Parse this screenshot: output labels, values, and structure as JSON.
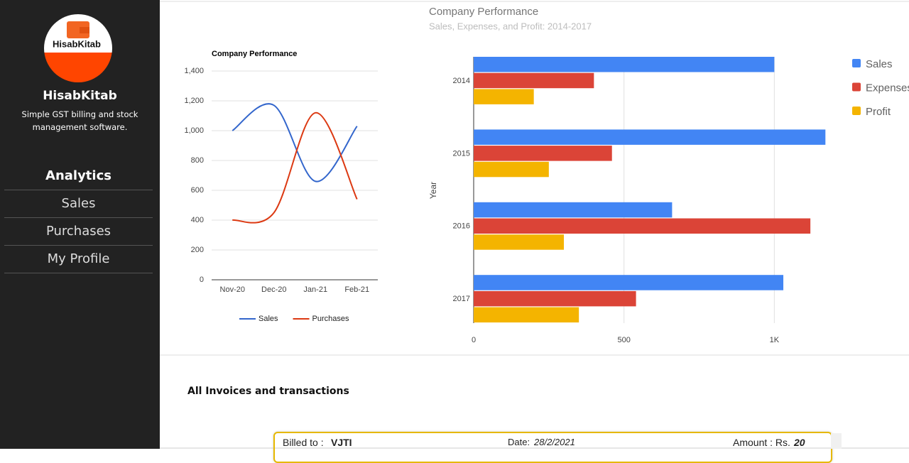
{
  "sidebar": {
    "logo_text": "HisabKitab",
    "brand": "HisabKitab",
    "tagline": "Simple GST billing and stock management software.",
    "nav": [
      "Analytics",
      "Sales",
      "Purchases",
      "My Profile"
    ]
  },
  "chart_data": [
    {
      "type": "line",
      "title": "Company Performance",
      "categories": [
        "Nov-20",
        "Dec-20",
        "Jan-21",
        "Feb-21"
      ],
      "series": [
        {
          "name": "Sales",
          "color": "#3366cc",
          "values": [
            1000,
            1170,
            660,
            1030
          ]
        },
        {
          "name": "Purchases",
          "color": "#dc3912",
          "values": [
            400,
            450,
            1120,
            540
          ]
        }
      ],
      "ylim": [
        0,
        1400
      ],
      "yticks": [
        0,
        200,
        400,
        600,
        800,
        {
          "value": 1000,
          "label": "1,000"
        },
        {
          "value": 1200,
          "label": "1,200"
        },
        {
          "value": 1400,
          "label": "1,400"
        }
      ],
      "grid": true,
      "smooth": true,
      "legend": "bottom"
    },
    {
      "type": "bar",
      "orientation": "horizontal",
      "title": "Company Performance",
      "subtitle": "Sales, Expenses, and Profit: 2014-2017",
      "y_label": "Year",
      "categories": [
        "2014",
        "2015",
        "2016",
        "2017"
      ],
      "series": [
        {
          "name": "Sales",
          "color": "#4285f4",
          "values": [
            1000,
            1170,
            660,
            1030
          ]
        },
        {
          "name": "Expenses",
          "color": "#db4437",
          "values": [
            400,
            460,
            1120,
            540
          ]
        },
        {
          "name": "Profit",
          "color": "#f4b400",
          "values": [
            200,
            250,
            300,
            350
          ]
        }
      ],
      "xlim": [
        0,
        1200
      ],
      "xticks": [
        0,
        500,
        {
          "value": 1000,
          "label": "1K"
        }
      ],
      "grid": true,
      "legend": "right"
    }
  ],
  "section_title": "All Invoices and transactions",
  "invoice": {
    "billed_to_label": "Billed to :",
    "billed_to": "VJTI",
    "date_label": "Date:",
    "date": "28/2/2021",
    "amount_label": "Amount : Rs.",
    "amount": 20
  }
}
